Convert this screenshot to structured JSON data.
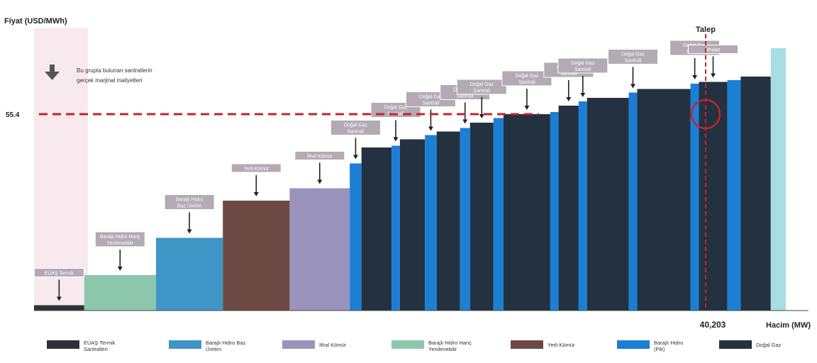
{
  "chart_data": {
    "type": "bar",
    "ylabel": "Fiyat (USD/MWh)",
    "xlabel": "Hacim (MW)",
    "legend_position": "bottom",
    "grid": false,
    "note": [
      "Bu grupta bulunan santrallerin",
      "gerçek marjinal maliyetleri"
    ],
    "marginal_price": {
      "label": "55.4",
      "value": 55.4
    },
    "demand": {
      "label": "Talep",
      "value_label": "40,203",
      "value": 40203
    },
    "bar_labels": [
      {
        "id": "b0",
        "lines": [
          "EÜAŞ Termik"
        ]
      },
      {
        "id": "b1",
        "lines": [
          "Barajlı Hidro Hariç",
          "Yenilenebilir"
        ]
      },
      {
        "id": "b2",
        "lines": [
          "Barajlı Hidro",
          "Baz Üretim"
        ]
      },
      {
        "id": "b3",
        "lines": [
          "Yerli Kömür"
        ]
      },
      {
        "id": "b4",
        "lines": [
          "İthal Kömür"
        ]
      },
      {
        "id": "b5",
        "lines": [
          "Doğal Gaz",
          "Santrali"
        ]
      },
      {
        "id": "b7",
        "lines": [
          "Doğal Gaz",
          "Santrali"
        ]
      },
      {
        "id": "b9",
        "lines": [
          "Doğal Gaz",
          "Santrali"
        ]
      },
      {
        "id": "b11",
        "lines": [
          "Doğal Gaz",
          "Santrali"
        ]
      },
      {
        "id": "b12",
        "lines": [
          "Doğal Gaz",
          "Santrali"
        ]
      },
      {
        "id": "b14",
        "lines": [
          "Doğal Gaz",
          "Santrali"
        ]
      },
      {
        "id": "b16",
        "lines": [
          "Doğal Gaz",
          "Santrali"
        ]
      },
      {
        "id": "b17",
        "lines": [
          "Doğal Gaz",
          "Santrali"
        ]
      },
      {
        "id": "b19",
        "lines": [
          "Doğal Gaz",
          "Santrali"
        ]
      },
      {
        "id": "b21",
        "lines": [
          "Doğal Gaz",
          "Santrali"
        ]
      },
      {
        "id": "b22",
        "lines": [
          "İthalat"
        ]
      }
    ],
    "bars": [
      {
        "type": "EUAS",
        "start": 0,
        "width": 3000,
        "value": 1.5
      },
      {
        "type": "YEN",
        "start": 3000,
        "width": 4300,
        "value": 10
      },
      {
        "type": "BAZ",
        "start": 7300,
        "width": 4000,
        "value": 20.5
      },
      {
        "type": "YERLI",
        "start": 11300,
        "width": 4000,
        "value": 31
      },
      {
        "type": "ITHAL",
        "start": 15300,
        "width": 3600,
        "value": 34.5
      },
      {
        "type": "PIK",
        "start": 18900,
        "width": 700,
        "value": 41.5
      },
      {
        "type": "DG",
        "start": 19600,
        "width": 1800,
        "value": 46
      },
      {
        "type": "PIK",
        "start": 21400,
        "width": 500,
        "value": 46.5
      },
      {
        "type": "DG",
        "start": 21900,
        "width": 1500,
        "value": 48.3
      },
      {
        "type": "PIK",
        "start": 23400,
        "width": 700,
        "value": 49.5
      },
      {
        "type": "DG",
        "start": 24100,
        "width": 1400,
        "value": 50.5
      },
      {
        "type": "PIK",
        "start": 25500,
        "width": 600,
        "value": 51.5
      },
      {
        "type": "DG",
        "start": 26100,
        "width": 1400,
        "value": 53
      },
      {
        "type": "PIK",
        "start": 27500,
        "width": 600,
        "value": 54.3
      },
      {
        "type": "DG",
        "start": 28100,
        "width": 2800,
        "value": 55.4
      },
      {
        "type": "PIK",
        "start": 30900,
        "width": 500,
        "value": 56
      },
      {
        "type": "DG",
        "start": 31400,
        "width": 1200,
        "value": 57.8
      },
      {
        "type": "PIK",
        "start": 32600,
        "width": 500,
        "value": 59
      },
      {
        "type": "DG",
        "start": 33100,
        "width": 2500,
        "value": 60
      },
      {
        "type": "PIK",
        "start": 35600,
        "width": 500,
        "value": 61.5
      },
      {
        "type": "DG",
        "start": 36100,
        "width": 3200,
        "value": 62.5
      },
      {
        "type": "PIK",
        "start": 39300,
        "width": 500,
        "value": 64
      },
      {
        "type": "DG",
        "start": 39800,
        "width": 1700,
        "value": 64.5
      },
      {
        "type": "PIK",
        "start": 41500,
        "width": 800,
        "value": 65
      },
      {
        "type": "DG",
        "start": 42300,
        "width": 1800,
        "value": 66
      },
      {
        "type": "ITH",
        "start": 44100,
        "width": 900,
        "value": 74
      }
    ],
    "legend": [
      {
        "type": "EUAS",
        "label": [
          "EÜAŞ Termik",
          "Santralleri"
        ]
      },
      {
        "type": "BAZ",
        "label": [
          "Barajlı Hidro Baz",
          "Üretim"
        ]
      },
      {
        "type": "ITHAL",
        "label": [
          "İthal Kömür"
        ]
      },
      {
        "type": "YEN",
        "label": [
          "Barajlı Hidro Hariç",
          "Yenilenebilir"
        ]
      },
      {
        "type": "YERLI",
        "label": [
          "Yerli Kömür"
        ]
      },
      {
        "type": "PIK",
        "label": [
          "Barajlı Hidro",
          "(Pik)"
        ]
      },
      {
        "type": "DG",
        "label": [
          "Doğal Gaz"
        ]
      }
    ],
    "colors": {
      "EUAS": "#2f3234",
      "YEN": "#8cc7ad",
      "BAZ": "#3f96c6",
      "YERLI": "#6c4a43",
      "ITHAL": "#9a94bd",
      "PIK": "#1b7fd6",
      "DG": "#233140",
      "ITH": "#a9dde4",
      "marginal_line": "#c4242b",
      "label_box": "#b3aab4"
    }
  }
}
